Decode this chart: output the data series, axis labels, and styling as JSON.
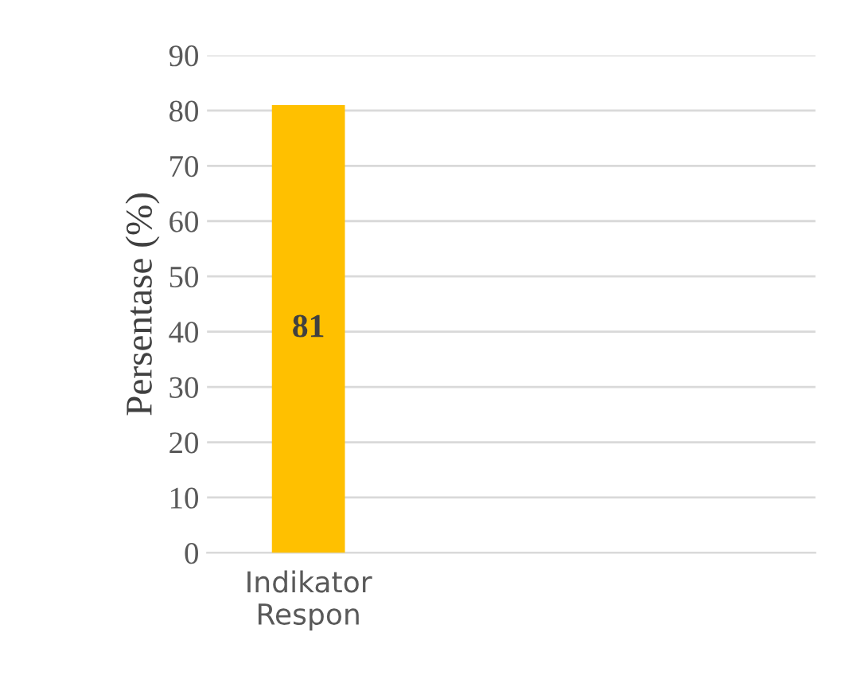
{
  "chart_data": {
    "type": "bar",
    "ylabel": "Persentase (%)",
    "categories": [
      "Indikator Respon",
      null,
      null
    ],
    "values": [
      81,
      null,
      null
    ],
    "color": "#ffc000",
    "ylim": [
      0,
      90
    ],
    "yticks": [
      0,
      10,
      20,
      30,
      40,
      50,
      60,
      70,
      80,
      90
    ],
    "grid": "y",
    "data_labels": true
  }
}
